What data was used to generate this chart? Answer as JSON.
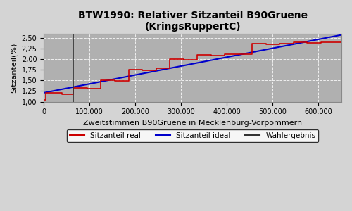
{
  "title": "BTW1990: Relativer Sitzanteil B90Gruene\n(KringsRuppertC)",
  "xlabel": "Zweitstimmen B90Gruene in Mecklenburg-Vorpommern",
  "ylabel": "Sitzanteil(%)",
  "xlim": [
    0,
    650000
  ],
  "ylim": [
    1.0,
    2.6
  ],
  "bg_color": "#b0b0b0",
  "fig_bg_color": "#d4d4d4",
  "wahlergebnis_x": 65000,
  "ideal_start_x": 0,
  "ideal_start_y": 1.21,
  "ideal_end_x": 650000,
  "ideal_end_y": 2.57,
  "steps_x": [
    0,
    5000,
    5000,
    40000,
    40000,
    65000,
    65000,
    95000,
    95000,
    125000,
    125000,
    155000,
    155000,
    185000,
    185000,
    215000,
    215000,
    245000,
    245000,
    275000,
    275000,
    305000,
    305000,
    335000,
    335000,
    365000,
    365000,
    395000,
    395000,
    425000,
    425000,
    455000,
    455000,
    485000,
    485000,
    515000,
    515000,
    545000,
    545000,
    575000,
    575000,
    605000,
    605000,
    635000,
    635000,
    650000
  ],
  "steps_y": [
    1.05,
    1.05,
    1.21,
    1.21,
    1.18,
    1.18,
    1.33,
    1.33,
    1.3,
    1.3,
    1.51,
    1.51,
    1.49,
    1.49,
    1.76,
    1.76,
    1.74,
    1.74,
    1.79,
    1.79,
    2.0,
    2.0,
    1.98,
    1.98,
    2.1,
    2.1,
    2.08,
    2.08,
    2.12,
    2.12,
    2.11,
    2.11,
    2.37,
    2.37,
    2.35,
    2.35,
    2.37,
    2.37,
    2.39,
    2.39,
    2.38,
    2.38,
    2.4,
    2.4,
    2.39,
    2.39
  ],
  "yticks": [
    1.0,
    1.25,
    1.5,
    1.75,
    2.0,
    2.25,
    2.5
  ],
  "xticks": [
    0,
    100000,
    200000,
    300000,
    400000,
    500000,
    600000
  ],
  "legend_labels": [
    "Sitzanteil real",
    "Sitzanteil ideal",
    "Wahlergebnis"
  ],
  "legend_colors": [
    "#cc0000",
    "#0000cc",
    "#333333"
  ]
}
